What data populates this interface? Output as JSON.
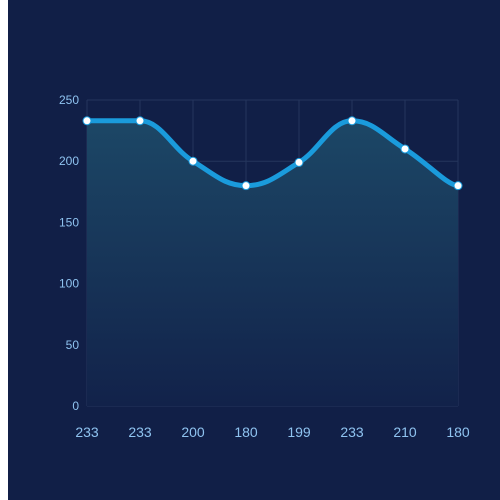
{
  "chart_data": {
    "type": "area",
    "categories": [
      "233",
      "233",
      "200",
      "180",
      "199",
      "233",
      "210",
      "180"
    ],
    "values": [
      233,
      233,
      200,
      180,
      199,
      233,
      210,
      180
    ],
    "ylim": [
      0,
      250
    ],
    "yticks": [
      0,
      50,
      100,
      150,
      200,
      250
    ],
    "grid": true,
    "smooth": true,
    "colors": {
      "background": "#111f47",
      "line": "#1a9bdc",
      "area_top": "#1c4766",
      "area_bottom": "#12224a",
      "grid": "#25365d",
      "marker_fill": "#ffffff",
      "tick_text": "#8fc3f0"
    }
  }
}
